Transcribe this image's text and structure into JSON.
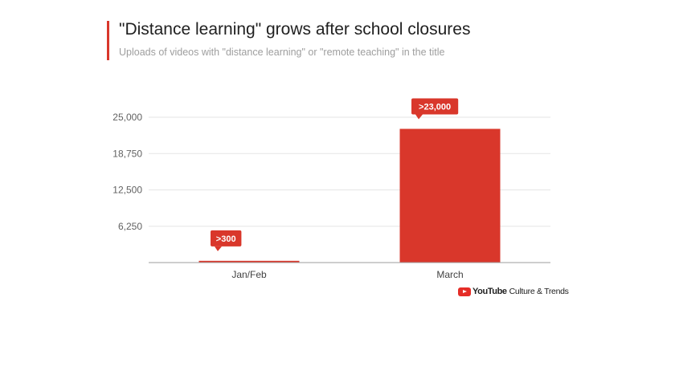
{
  "header": {
    "title": "\"Distance learning\" grows after school closures",
    "subtitle": "Uploads of videos with \"distance learning\" or \"remote teaching\" in the title"
  },
  "colors": {
    "accent": "#d9372b",
    "bar": "#d9372b",
    "grid": "#e6e6e6",
    "axis": "#9e9e9e"
  },
  "chart_data": {
    "type": "bar",
    "categories": [
      "Jan/Feb",
      "March"
    ],
    "values": [
      300,
      23000
    ],
    "data_labels": [
      ">300",
      ">23,000"
    ],
    "ylim": [
      0,
      25000
    ],
    "yticks": [
      6250,
      12500,
      18750,
      25000
    ],
    "ytick_labels": [
      "6,250",
      "12,500",
      "18,750",
      "25,000"
    ],
    "grid": true,
    "title": "\"Distance learning\" grows after school closures",
    "xlabel": "",
    "ylabel": ""
  },
  "branding": {
    "logo_icon": "youtube-play-icon",
    "name": "YouTube",
    "subtitle": "Culture & Trends"
  }
}
